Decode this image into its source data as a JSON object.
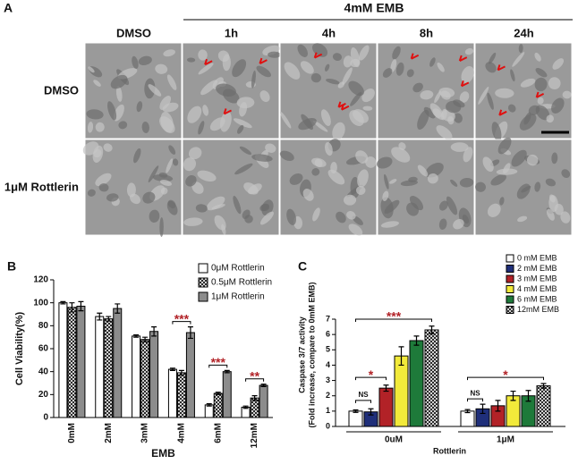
{
  "panel_a": {
    "label": "A",
    "treatment": "4mM EMB",
    "columns": [
      "DMSO",
      "1h",
      "4h",
      "8h",
      "24h"
    ],
    "rows": [
      "DMSO",
      "1μM Rottlerin"
    ]
  },
  "chart_data": [
    {
      "type": "bar",
      "panel_label": "B",
      "y_label": "Cell Viability(%)",
      "x_label": "EMB",
      "categories": [
        "0mM",
        "2mM",
        "3mM",
        "4mM",
        "6mM",
        "12mM"
      ],
      "series": [
        {
          "name": "0μM Rottlerin",
          "color": "#ffffff",
          "hatch": false,
          "values": [
            100,
            88,
            71,
            42,
            11,
            9
          ],
          "errors": [
            1,
            3,
            1,
            1,
            1,
            1
          ]
        },
        {
          "name": "0.5μM Rottlerin",
          "color": "#ffffff",
          "hatch": true,
          "values": [
            96,
            86,
            68,
            39,
            21,
            17
          ],
          "errors": [
            4,
            2,
            2,
            2,
            1,
            2
          ]
        },
        {
          "name": "1μM Rottlerin",
          "color": "#8c8c8c",
          "hatch": false,
          "values": [
            97,
            95,
            75,
            74,
            40,
            28
          ],
          "errors": [
            4,
            4,
            4,
            5,
            1,
            1
          ]
        }
      ],
      "ylim": [
        0,
        120
      ],
      "yticks": [
        0,
        20,
        40,
        60,
        80,
        100,
        120
      ],
      "annotations": [
        {
          "label": "***",
          "category": "4mM"
        },
        {
          "label": "***",
          "category": "6mM"
        },
        {
          "label": "**",
          "category": "12mM"
        }
      ]
    },
    {
      "type": "bar",
      "panel_label": "C",
      "y_label": [
        "Caspase 3/7 activity",
        "(Fold increase, compare to 0mM EMB)"
      ],
      "x_label": "Rottlerin",
      "categories": [
        "0uM",
        "1μM"
      ],
      "series": [
        {
          "name": "0 mM EMB",
          "color": "#ffffff",
          "hatch": false,
          "values": [
            1.0,
            1.0
          ],
          "errors": [
            0.08,
            0.1
          ]
        },
        {
          "name": "2 mM EMB",
          "color": "#1f2f7a",
          "hatch": false,
          "values": [
            0.95,
            1.15
          ],
          "errors": [
            0.2,
            0.3
          ]
        },
        {
          "name": "3 mM EMB",
          "color": "#b22227",
          "hatch": false,
          "values": [
            2.5,
            1.35
          ],
          "errors": [
            0.2,
            0.35
          ]
        },
        {
          "name": "4 mM EMB",
          "color": "#f2ea3a",
          "hatch": false,
          "values": [
            4.6,
            2.0
          ],
          "errors": [
            0.6,
            0.3
          ]
        },
        {
          "name": "6 mM EMB",
          "color": "#1e7a3a",
          "hatch": false,
          "values": [
            5.6,
            2.0
          ],
          "errors": [
            0.3,
            0.35
          ]
        },
        {
          "name": "12mM EMB",
          "color": "#ffffff",
          "hatch": true,
          "values": [
            6.3,
            2.65
          ],
          "errors": [
            0.25,
            0.15
          ]
        }
      ],
      "ylim": [
        0,
        7
      ],
      "yticks": [
        0,
        1,
        2,
        3,
        4,
        5,
        6,
        7
      ],
      "annotations": [
        {
          "label": "NS"
        },
        {
          "label": "*"
        },
        {
          "label": "***"
        },
        {
          "label": "NS"
        },
        {
          "label": "*"
        }
      ]
    }
  ]
}
